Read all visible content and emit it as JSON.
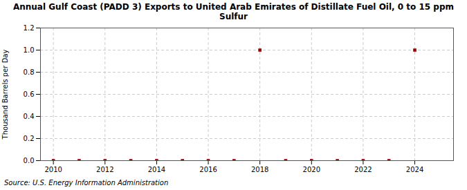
{
  "chart_data": {
    "type": "scatter",
    "title": "Annual Gulf Coast (PADD 3) Exports to United Arab Emirates of Distillate Fuel Oil, 0 to 15 ppm\nSulfur",
    "ylabel": "Thousand Barrels per Day",
    "source": "Source: U.S. Energy Information Administration",
    "x": [
      2010,
      2011,
      2012,
      2013,
      2014,
      2015,
      2016,
      2017,
      2018,
      2019,
      2020,
      2021,
      2022,
      2023,
      2024
    ],
    "values": [
      0.0,
      0.0,
      0.0,
      0.0,
      0.0,
      0.0,
      0.0,
      0.0,
      1.0,
      0.0,
      0.0,
      0.0,
      0.0,
      0.0,
      1.0
    ],
    "color": "#990000",
    "marker": "square",
    "xlim": [
      2009.5,
      2025.5
    ],
    "xticks": [
      2010,
      2012,
      2014,
      2016,
      2018,
      2020,
      2022,
      2024
    ],
    "ylim": [
      0.0,
      1.2
    ],
    "yticks": [
      {
        "value": 0.0,
        "label": "0.0"
      },
      0.2,
      0.4,
      0.6,
      0.8,
      {
        "value": 1.0,
        "label": "1.0"
      },
      1.2
    ],
    "grid": true
  }
}
